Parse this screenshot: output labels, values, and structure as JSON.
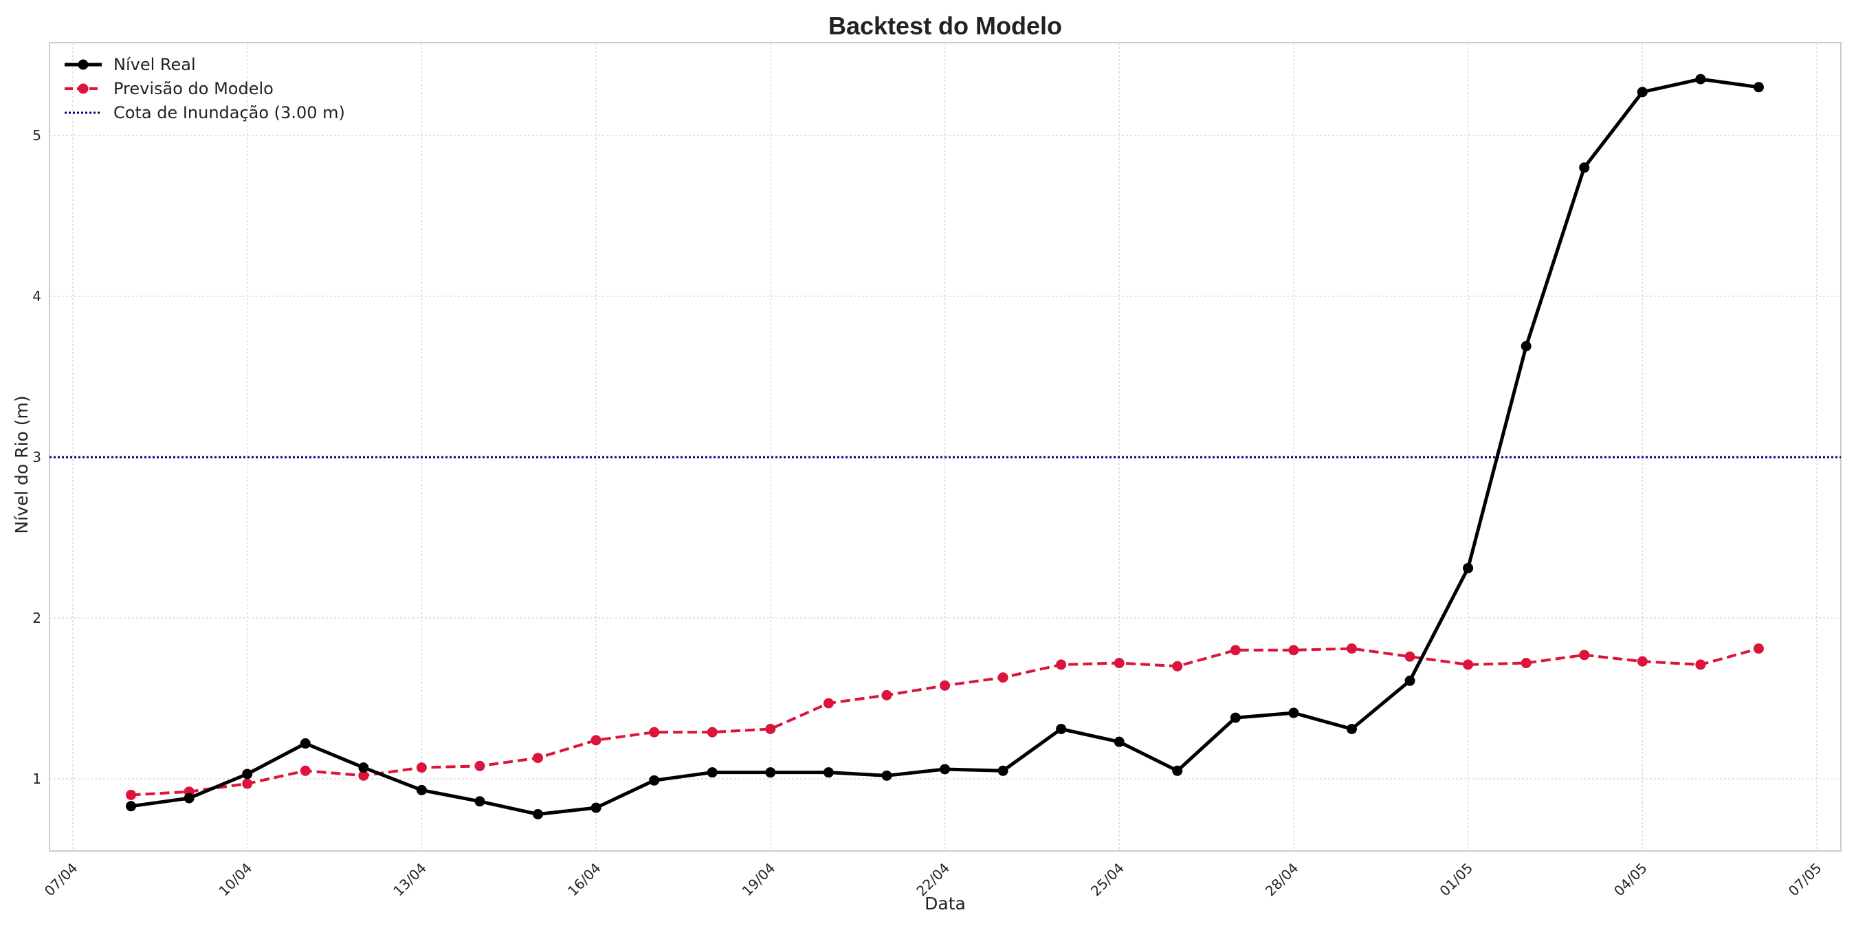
{
  "chart_data": {
    "type": "line",
    "title": "Backtest do Modelo",
    "xlabel": "Data",
    "ylabel": "Nível do Rio (m)",
    "x_tick_labels": [
      "07/04",
      "10/04",
      "13/04",
      "16/04",
      "19/04",
      "22/04",
      "25/04",
      "28/04",
      "01/05",
      "04/05",
      "07/05"
    ],
    "y_tick_labels": [
      "1",
      "2",
      "3",
      "4",
      "5"
    ],
    "xlim": [
      "07/04",
      "07/05"
    ],
    "ylim": [
      0.56,
      5.5
    ],
    "grid": true,
    "legend_position": "top-left",
    "x": [
      "08/04",
      "09/04",
      "10/04",
      "11/04",
      "12/04",
      "13/04",
      "14/04",
      "15/04",
      "16/04",
      "17/04",
      "18/04",
      "19/04",
      "20/04",
      "21/04",
      "22/04",
      "23/04",
      "24/04",
      "25/04",
      "26/04",
      "27/04",
      "28/04",
      "29/04",
      "30/04",
      "01/05",
      "02/05",
      "03/05",
      "04/05",
      "05/05",
      "06/05"
    ],
    "series": [
      {
        "name": "Nível Real",
        "color": "#000000",
        "style": "solid",
        "marker": "circle",
        "values": [
          0.83,
          0.88,
          1.03,
          1.22,
          1.07,
          0.93,
          0.86,
          0.78,
          0.82,
          0.99,
          1.04,
          1.04,
          1.04,
          1.02,
          1.06,
          1.05,
          1.31,
          1.23,
          1.05,
          1.38,
          1.41,
          1.31,
          1.61,
          2.31,
          3.69,
          4.8,
          5.27,
          5.35,
          5.3
        ]
      },
      {
        "name": "Previsão do Modelo",
        "color": "#dc143c",
        "style": "dashed",
        "marker": "circle",
        "values": [
          0.9,
          0.92,
          0.97,
          1.05,
          1.02,
          1.07,
          1.08,
          1.13,
          1.24,
          1.29,
          1.29,
          1.31,
          1.47,
          1.52,
          1.58,
          1.63,
          1.71,
          1.72,
          1.7,
          1.8,
          1.8,
          1.81,
          1.76,
          1.71,
          1.72,
          1.77,
          1.73,
          1.71,
          1.81
        ]
      }
    ],
    "reference_lines": [
      {
        "name": "Cota de Inundação (3.00 m)",
        "y": 3.0,
        "color": "#000080",
        "style": "dotted"
      }
    ]
  }
}
